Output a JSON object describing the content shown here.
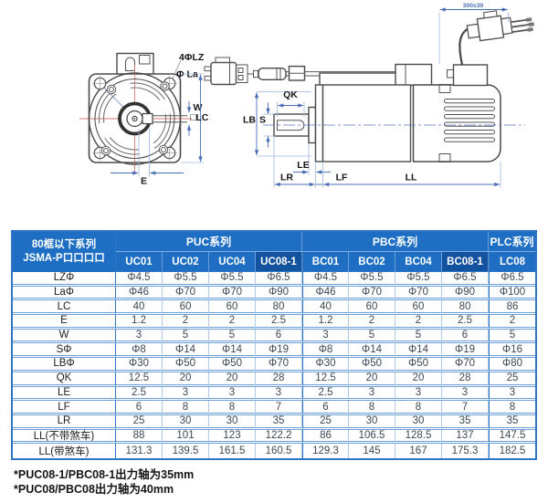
{
  "drawing": {
    "label_4phi_lz": "4ΦLZ",
    "label_phi_la": "Φ La",
    "label_w": "W",
    "label_lc": "□LC",
    "label_e": "E",
    "label_qk": "QK",
    "label_lb": "LB",
    "label_s": "S",
    "label_le": "LE",
    "label_lr": "LR",
    "label_lf": "LF",
    "label_ll": "LL",
    "cable_length": "300±30"
  },
  "table": {
    "corner": {
      "line1": "80框以下系列",
      "line2": "JSMA-P口口口口"
    },
    "groups": [
      {
        "label": "PUC系列",
        "span": 4
      },
      {
        "label": "PBC系列",
        "span": 4
      },
      {
        "label": "PLC系列",
        "span": 1
      }
    ],
    "columns": [
      "UC01",
      "UC02",
      "UC04",
      "UC08-1",
      "BC01",
      "BC02",
      "BC04",
      "BC08-1",
      "LC08"
    ],
    "highlight_columns": [
      "UC08-1",
      "BC08-1"
    ],
    "rows": [
      {
        "label": "LZΦ",
        "values": [
          "Φ4.5",
          "Φ5.5",
          "Φ5.5",
          "Φ6.5",
          "Φ4.5",
          "Φ5.5",
          "Φ5.5",
          "Φ6.5",
          "Φ6.5"
        ]
      },
      {
        "label": "LaΦ",
        "values": [
          "Φ46",
          "Φ70",
          "Φ70",
          "Φ90",
          "Φ46",
          "Φ70",
          "Φ70",
          "Φ90",
          "Φ100"
        ]
      },
      {
        "label": "LC",
        "values": [
          "40",
          "60",
          "60",
          "80",
          "40",
          "60",
          "60",
          "80",
          "86"
        ]
      },
      {
        "label": "E",
        "values": [
          "1.2",
          "2",
          "2",
          "2.5",
          "1.2",
          "2",
          "2",
          "2.5",
          "2"
        ]
      },
      {
        "label": "W",
        "values": [
          "3",
          "5",
          "5",
          "6",
          "3",
          "5",
          "5",
          "6",
          "5"
        ]
      },
      {
        "label": "SΦ",
        "values": [
          "Φ8",
          "Φ14",
          "Φ14",
          "Φ19",
          "Φ8",
          "Φ14",
          "Φ14",
          "Φ19",
          "Φ16"
        ]
      },
      {
        "label": "LBΦ",
        "values": [
          "Φ30",
          "Φ50",
          "Φ50",
          "Φ70",
          "Φ30",
          "Φ50",
          "Φ50",
          "Φ70",
          "Φ80"
        ]
      },
      {
        "label": "QK",
        "values": [
          "12.5",
          "20",
          "20",
          "28",
          "12.5",
          "20",
          "20",
          "28",
          "25"
        ]
      },
      {
        "label": "LE",
        "values": [
          "2.5",
          "3",
          "3",
          "3",
          "2.5",
          "3",
          "3",
          "3",
          "3"
        ]
      },
      {
        "label": "LF",
        "values": [
          "6",
          "8",
          "8",
          "7",
          "6",
          "8",
          "8",
          "7",
          "8"
        ]
      },
      {
        "label": "LR",
        "values": [
          "25",
          "30",
          "30",
          "35",
          "25",
          "30",
          "30",
          "35",
          "35"
        ]
      },
      {
        "label": "LL(不带煞车)",
        "values": [
          "88",
          "101",
          "123",
          "122.2",
          "86",
          "106.5",
          "128.5",
          "137",
          "147.5"
        ]
      },
      {
        "label": "LL(带煞车)",
        "values": [
          "131.3",
          "139.5",
          "161.5",
          "160.5",
          "129.3",
          "145",
          "167",
          "175.3",
          "182.5"
        ]
      }
    ]
  },
  "footnotes": [
    "*PUC08-1/PBC08-1出力轴为35mm",
    "*PUC08/PBC08出力轴为40mm"
  ],
  "colors": {
    "header_blue": "#1E6FC4",
    "header_dark_blue": "#13529E",
    "table_border": "#2E75C3",
    "grid_line": "#AECBEA",
    "dimension_blue": "#4B6DB8",
    "centerline_red": "#D97A7A"
  }
}
